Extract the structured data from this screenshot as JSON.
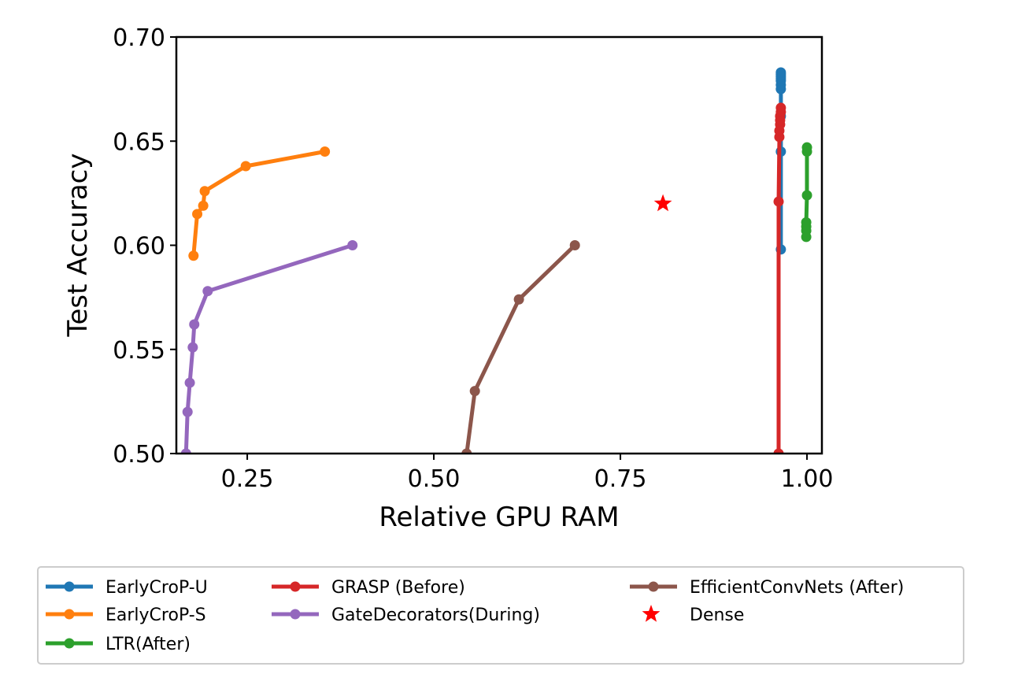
{
  "chart_data": {
    "type": "line",
    "title": "",
    "xlabel": "Relative GPU RAM",
    "ylabel": "Test Accuracy",
    "xlim": [
      0.155,
      1.02
    ],
    "ylim": [
      0.5,
      0.7
    ],
    "xticks": [
      0.25,
      0.5,
      0.75,
      1.0
    ],
    "xtick_labels": [
      "0.25",
      "0.50",
      "0.75",
      "1.00"
    ],
    "yticks": [
      0.5,
      0.55,
      0.6,
      0.65,
      0.7
    ],
    "ytick_labels": [
      "0.50",
      "0.55",
      "0.60",
      "0.65",
      "0.70"
    ],
    "grid": false,
    "legend_placement": "below",
    "series": [
      {
        "name": "EarlyCroP-U",
        "color": "#1f77b4",
        "marker": "circle",
        "x": [
          0.965,
          0.965,
          0.965,
          0.965,
          0.965,
          0.965,
          0.965,
          0.965,
          0.965,
          0.965
        ],
        "y": [
          0.598,
          0.645,
          0.662,
          0.675,
          0.677,
          0.679,
          0.68,
          0.681,
          0.682,
          0.683
        ]
      },
      {
        "name": "EarlyCroP-S",
        "color": "#ff7f0e",
        "marker": "circle",
        "x": [
          0.178,
          0.183,
          0.191,
          0.193,
          0.248,
          0.354
        ],
        "y": [
          0.595,
          0.615,
          0.619,
          0.626,
          0.638,
          0.645
        ]
      },
      {
        "name": "LTR(After)",
        "color": "#2ca02c",
        "marker": "circle",
        "x": [
          0.999,
          0.999,
          0.999,
          0.999,
          1.0,
          1.0,
          1.0
        ],
        "y": [
          0.604,
          0.607,
          0.609,
          0.611,
          0.624,
          0.645,
          0.647
        ]
      },
      {
        "name": "GRASP (Before)",
        "color": "#d62728",
        "marker": "circle",
        "x": [
          0.962,
          0.962,
          0.963,
          0.963,
          0.964,
          0.964,
          0.964,
          0.965,
          0.965
        ],
        "y": [
          0.5,
          0.621,
          0.652,
          0.655,
          0.658,
          0.66,
          0.662,
          0.664,
          0.666
        ]
      },
      {
        "name": "GateDecorators(During)",
        "color": "#9467bd",
        "marker": "circle",
        "x": [
          0.168,
          0.17,
          0.173,
          0.177,
          0.179,
          0.197,
          0.391
        ],
        "y": [
          0.5,
          0.52,
          0.534,
          0.551,
          0.562,
          0.578,
          0.6
        ]
      },
      {
        "name": "EfficientConvNets (After)",
        "color": "#8c564b",
        "marker": "circle",
        "x": [
          0.544,
          0.555,
          0.614,
          0.689
        ],
        "y": [
          0.5,
          0.53,
          0.574,
          0.6
        ]
      },
      {
        "name": "Dense",
        "color": "#ff0000",
        "marker": "star",
        "x": [
          0.807
        ],
        "y": [
          0.62
        ]
      }
    ]
  }
}
